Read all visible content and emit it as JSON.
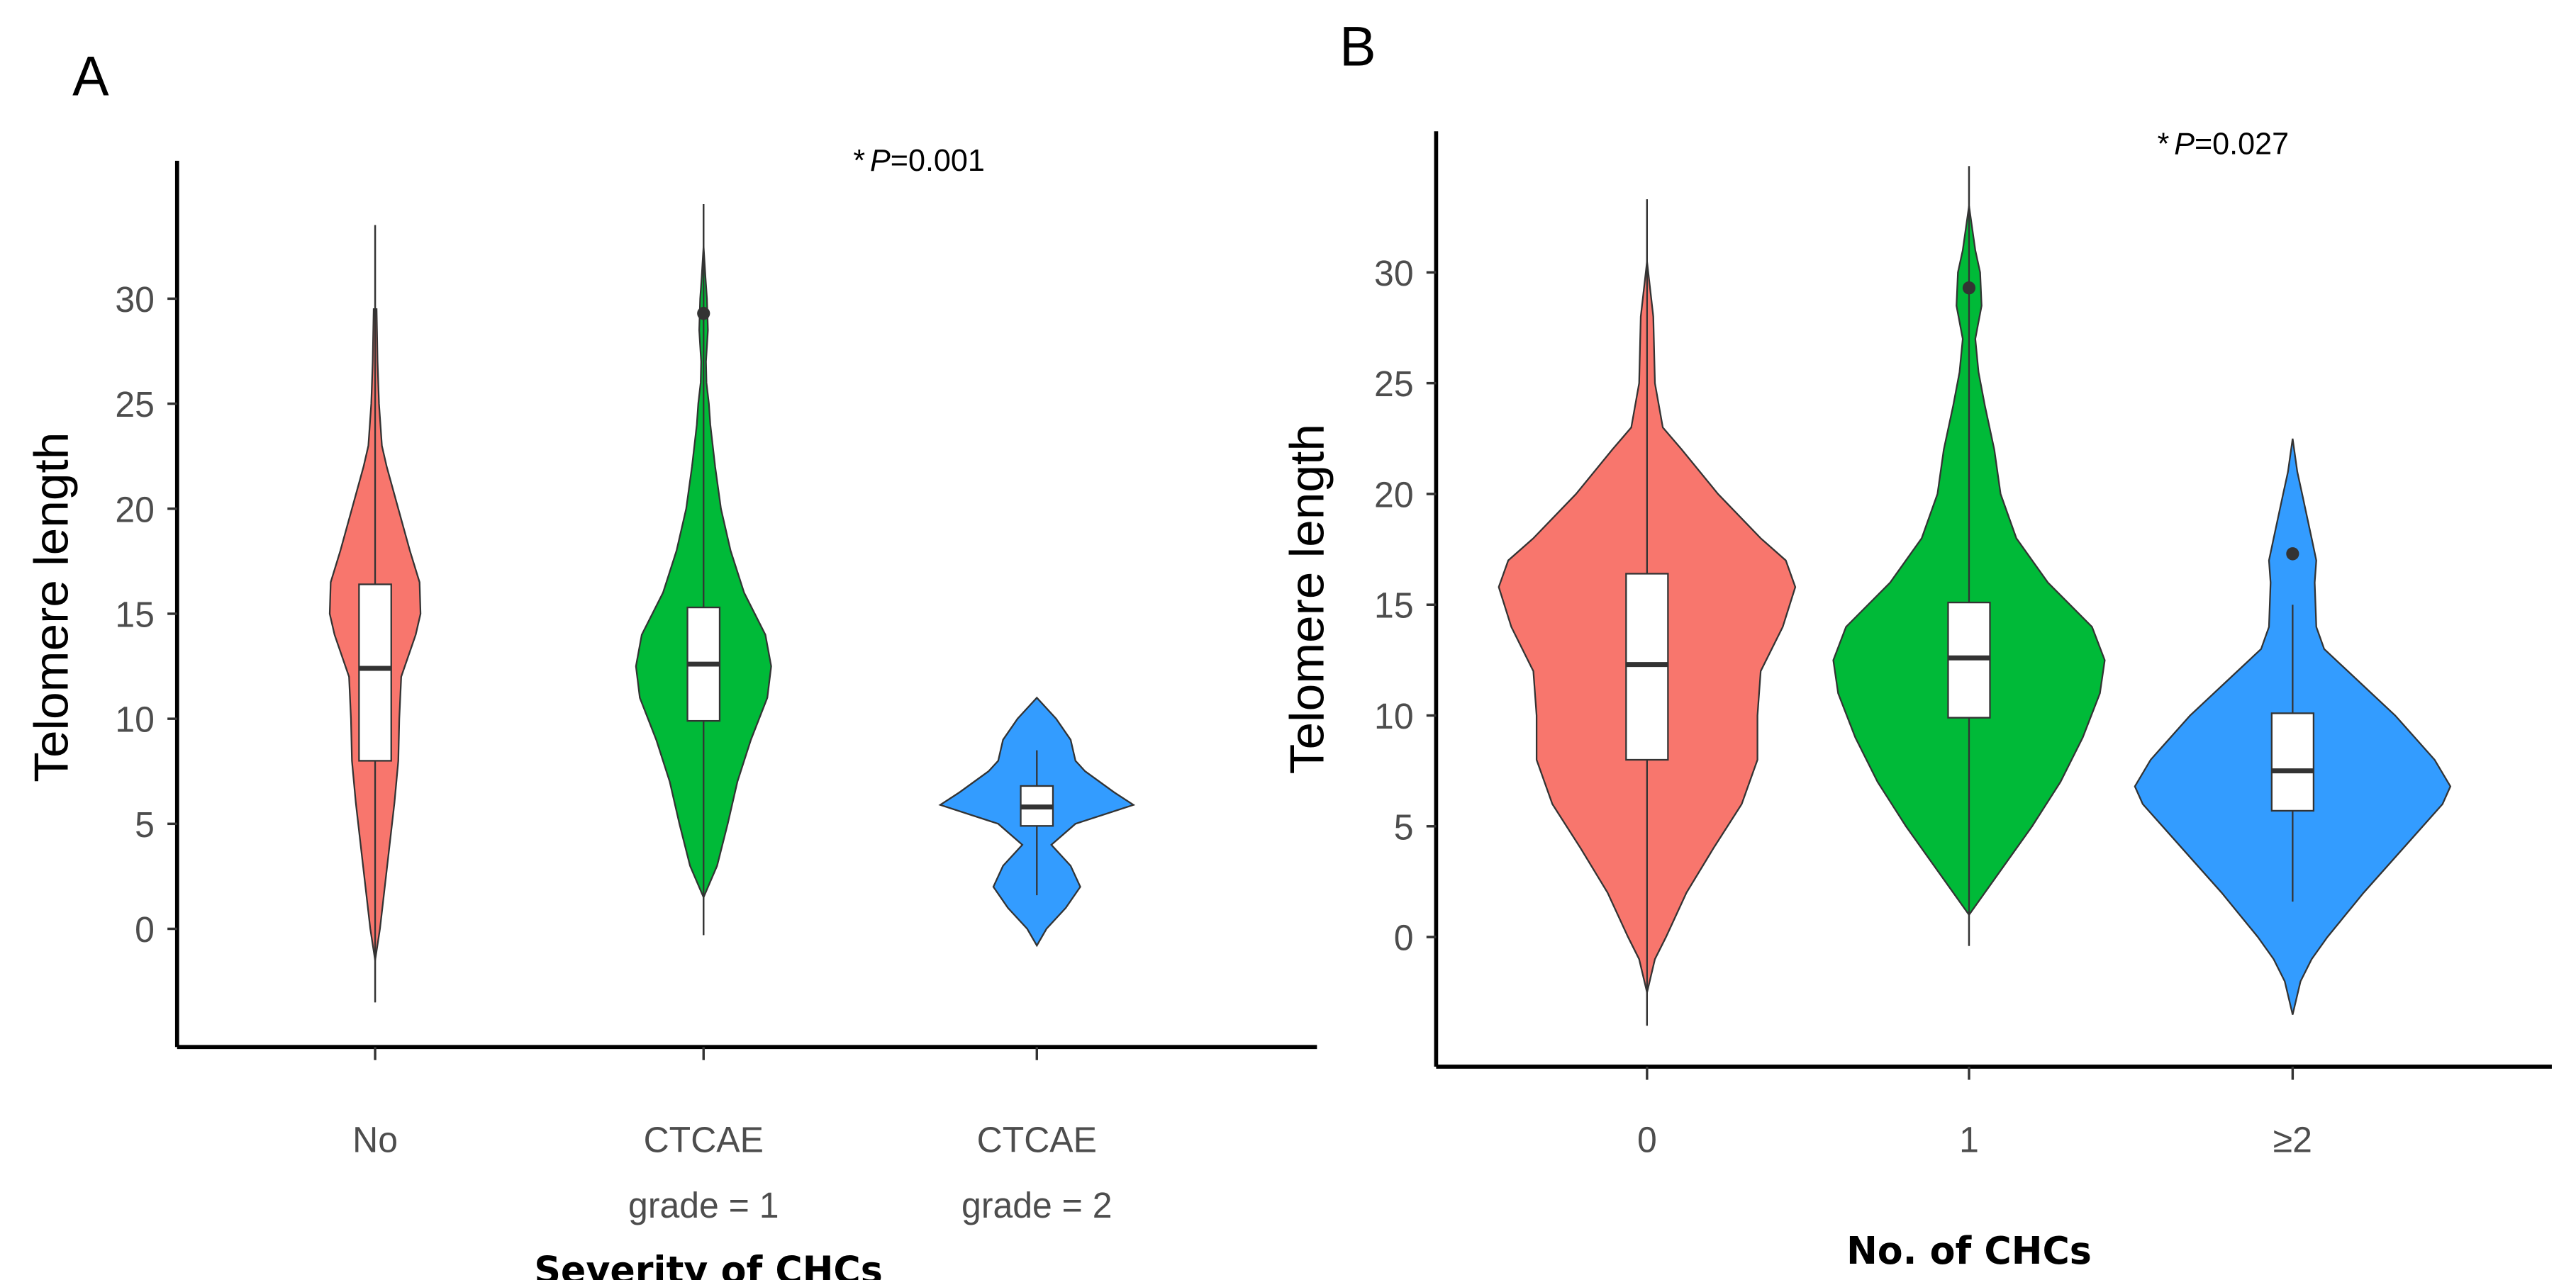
{
  "chart_data": [
    {
      "type": "violin",
      "panel_label": "A",
      "annotation": {
        "star": "*",
        "p": "P",
        "rest": "=0.001"
      },
      "xlabel": "Severity of CHCs",
      "ylabel": "Telomere length",
      "yticks": [
        0,
        5,
        10,
        15,
        20,
        25,
        30
      ],
      "ylim": [
        -4.5,
        36
      ],
      "grid": false,
      "categories": [
        {
          "line1": "No",
          "line2": ""
        },
        {
          "line1": "CTCAE",
          "line2": "grade = 1"
        },
        {
          "line1": "CTCAE",
          "line2": "grade = 2"
        }
      ],
      "groups": [
        {
          "color": "#F8766D",
          "density": [
            [
              -1.5,
              0
            ],
            [
              0,
              0.05
            ],
            [
              2,
              0.1
            ],
            [
              4,
              0.15
            ],
            [
              6,
              0.2
            ],
            [
              8,
              0.24
            ],
            [
              10,
              0.25
            ],
            [
              12,
              0.27
            ],
            [
              14,
              0.42
            ],
            [
              15,
              0.47
            ],
            [
              16.5,
              0.46
            ],
            [
              18,
              0.36
            ],
            [
              20,
              0.24
            ],
            [
              22,
              0.12
            ],
            [
              23,
              0.07
            ],
            [
              25,
              0.04
            ],
            [
              27,
              0.025
            ],
            [
              29.5,
              0.015
            ]
          ],
          "box": {
            "q1": 8.0,
            "median": 12.4,
            "q3": 16.4
          },
          "line": [
            -3.5,
            33.5
          ],
          "outliers": []
        },
        {
          "color": "#00BA38",
          "density": [
            [
              1.5,
              0
            ],
            [
              3,
              0.14
            ],
            [
              5,
              0.25
            ],
            [
              7,
              0.35
            ],
            [
              9,
              0.49
            ],
            [
              11,
              0.66
            ],
            [
              12.5,
              0.7
            ],
            [
              14,
              0.64
            ],
            [
              16,
              0.42
            ],
            [
              18,
              0.28
            ],
            [
              20,
              0.18
            ],
            [
              22,
              0.12
            ],
            [
              24,
              0.07
            ],
            [
              25,
              0.055
            ],
            [
              26,
              0.03
            ],
            [
              27,
              0.025
            ],
            [
              28.5,
              0.045
            ],
            [
              30,
              0.035
            ],
            [
              31,
              0.02
            ],
            [
              32.5,
              0
            ]
          ],
          "box": {
            "q1": 9.9,
            "median": 12.6,
            "q3": 15.3
          },
          "line": [
            -0.3,
            34.5
          ],
          "outliers": [
            29.3
          ]
        },
        {
          "color": "#339CFF",
          "density": [
            [
              -0.8,
              0
            ],
            [
              0,
              0.1
            ],
            [
              1,
              0.3
            ],
            [
              2,
              0.45
            ],
            [
              3,
              0.35
            ],
            [
              4,
              0.15
            ],
            [
              5,
              0.4
            ],
            [
              5.9,
              1
            ],
            [
              6.5,
              0.8
            ],
            [
              7.5,
              0.5
            ],
            [
              8,
              0.4
            ],
            [
              9,
              0.35
            ],
            [
              10,
              0.2
            ],
            [
              11,
              0
            ]
          ],
          "box": {
            "q1": 4.9,
            "median": 5.8,
            "q3": 6.8
          },
          "line": [
            1.6,
            8.5
          ],
          "outliers": []
        }
      ]
    },
    {
      "type": "violin",
      "panel_label": "B",
      "annotation": {
        "star": "*",
        "p": "P",
        "rest": "=0.027"
      },
      "xlabel": "No. of CHCs",
      "ylabel": "Telomere length",
      "yticks": [
        0,
        5,
        10,
        15,
        20,
        25,
        30
      ],
      "ylim": [
        -5.5,
        36
      ],
      "grid": false,
      "categories": [
        {
          "line1": "0",
          "line2": ""
        },
        {
          "line1": "1",
          "line2": ""
        },
        {
          "line1": "≥2",
          "line2": ""
        }
      ],
      "groups": [
        {
          "color": "#F8766D",
          "density": [
            [
              -2.5,
              0
            ],
            [
              -1,
              0.05
            ],
            [
              0,
              0.12
            ],
            [
              2,
              0.25
            ],
            [
              4,
              0.42
            ],
            [
              6,
              0.6
            ],
            [
              8,
              0.7
            ],
            [
              10,
              0.7
            ],
            [
              12,
              0.72
            ],
            [
              14,
              0.86
            ],
            [
              15.8,
              0.94
            ],
            [
              17,
              0.88
            ],
            [
              18,
              0.72
            ],
            [
              20,
              0.45
            ],
            [
              22,
              0.22
            ],
            [
              23,
              0.1
            ],
            [
              25,
              0.05
            ],
            [
              28,
              0.04
            ],
            [
              30.5,
              0
            ]
          ],
          "box": {
            "q1": 8.0,
            "median": 12.3,
            "q3": 16.4
          },
          "line": [
            -4,
            33.3
          ],
          "outliers": []
        },
        {
          "color": "#00BA38",
          "density": [
            [
              1,
              0
            ],
            [
              2,
              0.1
            ],
            [
              3,
              0.2
            ],
            [
              5,
              0.4
            ],
            [
              7,
              0.58
            ],
            [
              9,
              0.72
            ],
            [
              11,
              0.83
            ],
            [
              12.5,
              0.86
            ],
            [
              14,
              0.78
            ],
            [
              16,
              0.5
            ],
            [
              18,
              0.3
            ],
            [
              20,
              0.2
            ],
            [
              22,
              0.16
            ],
            [
              24,
              0.1
            ],
            [
              25.5,
              0.06
            ],
            [
              27,
              0.04
            ],
            [
              28.5,
              0.08
            ],
            [
              30,
              0.07
            ],
            [
              31,
              0.04
            ],
            [
              33,
              0
            ]
          ],
          "box": {
            "q1": 9.9,
            "median": 12.6,
            "q3": 15.1
          },
          "line": [
            -0.4,
            34.8
          ],
          "outliers": [
            29.3
          ]
        },
        {
          "color": "#339CFF",
          "density": [
            [
              -3.5,
              0
            ],
            [
              -2,
              0.05
            ],
            [
              -1,
              0.12
            ],
            [
              0,
              0.22
            ],
            [
              2,
              0.45
            ],
            [
              4,
              0.7
            ],
            [
              6,
              0.95
            ],
            [
              6.8,
              1
            ],
            [
              8,
              0.9
            ],
            [
              10,
              0.65
            ],
            [
              12,
              0.35
            ],
            [
              13,
              0.2
            ],
            [
              14,
              0.15
            ],
            [
              16,
              0.14
            ],
            [
              17,
              0.15
            ],
            [
              18,
              0.12
            ],
            [
              20,
              0.06
            ],
            [
              21,
              0.03
            ],
            [
              22.5,
              0
            ]
          ],
          "box": {
            "q1": 5.7,
            "median": 7.5,
            "q3": 10.1
          },
          "line": [
            1.6,
            15.0
          ],
          "outliers": [
            17.3
          ]
        }
      ]
    }
  ]
}
